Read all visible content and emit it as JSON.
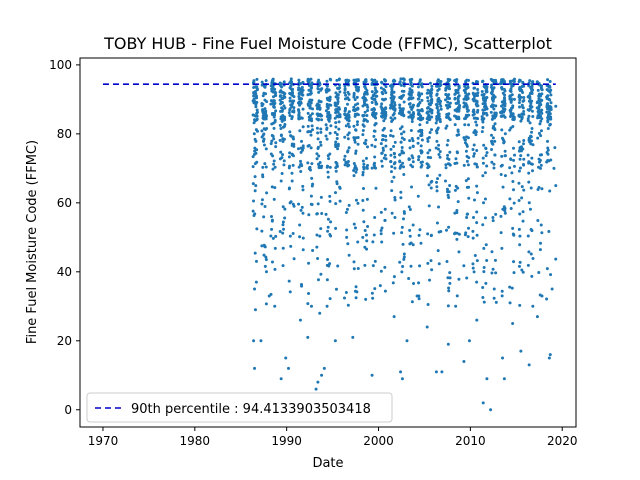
{
  "chart_data": {
    "type": "scatter",
    "title": "TOBY HUB - Fine Fuel Moisture Code (FFMC), Scatterplot",
    "xlabel": "Date",
    "ylabel": "Fine Fuel Moisture Code (FFMC)",
    "xlim": [
      1967.5,
      2021.5
    ],
    "ylim": [
      -5,
      102
    ],
    "x_ticks": [
      1970,
      1980,
      1990,
      2000,
      2010,
      2020
    ],
    "y_ticks": [
      0,
      20,
      40,
      60,
      80,
      100
    ],
    "grid": false,
    "legend": {
      "placement": "lower-left",
      "entries": [
        "90th percentile : 94.4133903503418"
      ]
    },
    "reference_line": {
      "y": 94.4133903503418,
      "x_start": 1970,
      "x_end": 2019.3,
      "style": "dashed",
      "color": "#0000cc"
    },
    "marker_color": "#1f77b4",
    "series": [
      {
        "x_start": 1986.3,
        "x_end": 2019.3,
        "points": [
          [
            1986.4,
            20
          ],
          [
            1986.5,
            12
          ],
          [
            1986.6,
            29
          ],
          [
            1986.5,
            35
          ],
          [
            1986.7,
            37
          ],
          [
            1987.2,
            20
          ],
          [
            1987.8,
            40
          ],
          [
            1988.1,
            33
          ],
          [
            1988.7,
            30
          ],
          [
            1989.4,
            9
          ],
          [
            1989.9,
            15
          ],
          [
            1990.2,
            12
          ],
          [
            1991.5,
            26
          ],
          [
            1992.3,
            21
          ],
          [
            1992.7,
            30
          ],
          [
            1993.2,
            6
          ],
          [
            1993.4,
            8
          ],
          [
            1993.8,
            10
          ],
          [
            1994.1,
            12
          ],
          [
            1993.6,
            28
          ],
          [
            1994.4,
            30
          ],
          [
            1995.3,
            20
          ],
          [
            1996.5,
            34
          ],
          [
            1997.2,
            21
          ],
          [
            1998.6,
            32
          ],
          [
            1999.3,
            10
          ],
          [
            2000.2,
            36
          ],
          [
            2001.7,
            27
          ],
          [
            2002.4,
            11
          ],
          [
            2002.6,
            9
          ],
          [
            2003.1,
            20
          ],
          [
            2004.2,
            33
          ],
          [
            2005.3,
            24
          ],
          [
            2006.3,
            11
          ],
          [
            2006.9,
            11
          ],
          [
            2007.6,
            19
          ],
          [
            2008.4,
            30
          ],
          [
            2009.3,
            14
          ],
          [
            2009.9,
            20
          ],
          [
            2010.7,
            26
          ],
          [
            2011.4,
            2
          ],
          [
            2011.8,
            9
          ],
          [
            2012.2,
            0
          ],
          [
            2012.6,
            35
          ],
          [
            2013.5,
            15
          ],
          [
            2013.7,
            9
          ],
          [
            2014.6,
            25
          ],
          [
            2015.5,
            17
          ],
          [
            2016.4,
            13
          ],
          [
            2016.8,
            30
          ],
          [
            2017.3,
            27
          ],
          [
            2017.8,
            33
          ],
          [
            2018.7,
            16
          ],
          [
            2018.6,
            15
          ],
          [
            2018.9,
            35
          ],
          [
            2019.2,
            76
          ],
          [
            2019.3,
            88
          ],
          [
            2019.1,
            70
          ],
          [
            2019.3,
            65
          ]
        ]
      }
    ]
  }
}
